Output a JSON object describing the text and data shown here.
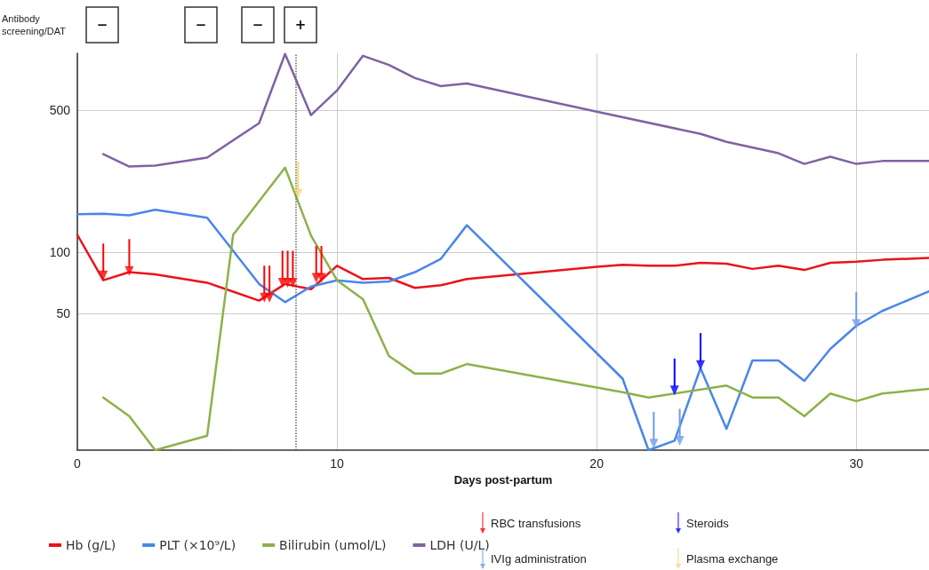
{
  "chart_data": {
    "type": "line",
    "xlabel": "Days post-partum",
    "log": "y",
    "grid": true,
    "legend": "bottom",
    "marker": "none",
    "line_style": "solid",
    "xlim": [
      0,
      32.8
    ],
    "xticks": [
      0,
      10,
      20,
      30
    ],
    "ylim": [
      10.7,
      950
    ],
    "yticks": [
      50,
      100,
      500
    ],
    "series": [
      {
        "name": "Hb (g/L)",
        "color": "#e8141b",
        "x": [
          0,
          1,
          2,
          3,
          5,
          7,
          8,
          9,
          10,
          11,
          12,
          13,
          14,
          15,
          20,
          21,
          22,
          23,
          24,
          25,
          26,
          27,
          28,
          29,
          30,
          31,
          32.8
        ],
        "values": [
          122,
          73,
          80,
          78,
          71,
          58,
          70,
          66,
          86,
          74,
          75,
          67,
          69,
          74,
          85,
          87,
          86,
          86,
          89,
          88,
          83,
          86,
          82,
          89,
          90,
          92,
          94
        ]
      },
      {
        "name": "PLT (×10⁹/L)",
        "color": "#4a86e8",
        "x": [
          0,
          1,
          2,
          3,
          5,
          7,
          8,
          9,
          10,
          11,
          12,
          13,
          14,
          15,
          21,
          22,
          23,
          24,
          25,
          26,
          27,
          28,
          29,
          30,
          31,
          32.8
        ],
        "values": [
          154,
          155,
          152,
          162,
          148,
          70,
          57,
          68,
          73,
          71,
          72,
          80,
          93,
          136,
          24,
          10.7,
          11.9,
          27,
          13.6,
          29.5,
          29.5,
          23.4,
          33.6,
          43.6,
          51.6,
          64.4
        ]
      },
      {
        "name": "Bilirubin (umol/L)",
        "color": "#8db14a",
        "x": [
          1,
          2,
          3,
          5,
          6,
          8,
          9,
          10,
          11,
          12,
          13,
          14,
          15,
          21,
          22,
          23,
          25,
          26,
          27,
          28,
          29,
          30,
          31,
          32.8
        ],
        "values": [
          19.4,
          15.7,
          10.7,
          12.6,
          122,
          261,
          121,
          73,
          59,
          31,
          25.4,
          25.4,
          28.3,
          20.6,
          19.4,
          20.3,
          22.2,
          19.4,
          19.4,
          15.7,
          20.3,
          18.6,
          20.3,
          21.4
        ]
      },
      {
        "name": "LDH (U/L)",
        "color": "#7f62a3",
        "x": [
          1,
          2,
          3,
          5,
          7,
          8,
          9,
          10,
          11,
          12,
          13,
          14,
          15,
          20,
          24,
          25,
          27,
          28,
          29,
          30,
          31,
          32.8
        ],
        "values": [
          304,
          264,
          267,
          292,
          431,
          943,
          472,
          624,
          923,
          833,
          718,
          655,
          676,
          491,
          382,
          349,
          307,
          272,
          295,
          272,
          281,
          281
        ]
      },
      {
        "name": "RBC transfusions",
        "type": "scatter",
        "marker": "triangle",
        "color": "#ff0000",
        "x": [
          1,
          2,
          7.2,
          7.4,
          7.9,
          8.1,
          8.3,
          9.2,
          9.4
        ],
        "values": [
          77,
          81,
          60,
          60,
          71,
          71,
          71,
          75,
          75
        ]
      },
      {
        "name": "Steroids",
        "type": "scatter",
        "marker": "triangle",
        "color": "#0000ff",
        "x": [
          23,
          24
        ],
        "values": [
          21,
          28
        ]
      },
      {
        "name": "IVIg administration",
        "type": "scatter",
        "marker": "triangle",
        "color": "#6f9be8",
        "x": [
          22.2,
          23.2,
          30
        ],
        "values": [
          11.5,
          11.9,
          44.5
        ]
      },
      {
        "name": "Plasma exchange",
        "type": "scatter",
        "marker": "triangle",
        "color": "#f7d675",
        "x": [
          8.5
        ],
        "values": [
          194
        ]
      }
    ],
    "ref_lines": [
      {
        "axis": "x",
        "value": 8.4,
        "color": "#666666",
        "line_style": "dotted"
      }
    ],
    "annotations": [
      "Antibody screening/DAT",
      "−",
      "−",
      "−",
      "+"
    ]
  }
}
